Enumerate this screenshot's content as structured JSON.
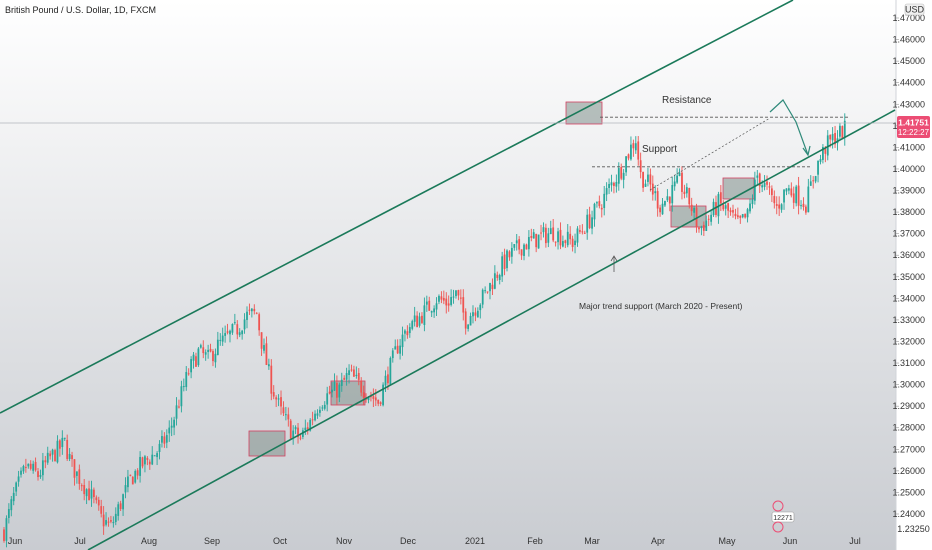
{
  "header": {
    "symbol_title": "British Pound / U.S. Dollar, 1D, FXCM"
  },
  "price_panel": {
    "currency": "USD",
    "price_label": "1.41751",
    "countdown_label": "12:22:27",
    "bottom_label": "1.23250"
  },
  "misc": {
    "event_badge": "12271"
  },
  "colors": {
    "up": "#26a69a",
    "down": "#ef5350",
    "channel": "#1b7a5a",
    "price_line": "#c94d6f",
    "box_fill": "#7f8f8b",
    "box_stroke": "#d2405f",
    "background_top": "#ffffff",
    "background_bottom": "#c9ccd1"
  },
  "chart_data": {
    "type": "candlestick",
    "instrument": "British Pound / U.S. Dollar",
    "timeframe": "1D",
    "source": "FXCM",
    "ylim": [
      1.2325,
      1.475
    ],
    "ylabel": "USD",
    "y_ticks": [
      "1.47000",
      "1.46000",
      "1.45000",
      "1.44000",
      "1.43000",
      "1.42000",
      "1.41000",
      "1.40000",
      "1.39000",
      "1.38000",
      "1.37000",
      "1.36000",
      "1.35000",
      "1.34000",
      "1.33000",
      "1.32000",
      "1.31000",
      "1.30000",
      "1.29000",
      "1.28000",
      "1.27000",
      "1.26000",
      "1.25000",
      "1.24000"
    ],
    "x_ticks": [
      "Jun",
      "Jul",
      "Aug",
      "Sep",
      "Oct",
      "Nov",
      "Dec",
      "2021",
      "Feb",
      "Mar",
      "Apr",
      "May",
      "Jun",
      "Jul"
    ],
    "last_price": 1.41751,
    "price_path": [
      [
        0,
        1.232
      ],
      [
        4,
        1.248
      ],
      [
        9,
        1.262
      ],
      [
        14,
        1.258
      ],
      [
        19,
        1.266
      ],
      [
        25,
        1.273
      ],
      [
        28,
        1.262
      ],
      [
        32,
        1.255
      ],
      [
        36,
        1.248
      ],
      [
        40,
        1.238
      ],
      [
        44,
        1.234
      ],
      [
        48,
        1.245
      ],
      [
        52,
        1.256
      ],
      [
        56,
        1.262
      ],
      [
        60,
        1.266
      ],
      [
        64,
        1.27
      ],
      [
        68,
        1.278
      ],
      [
        72,
        1.292
      ],
      [
        76,
        1.306
      ],
      [
        80,
        1.315
      ],
      [
        84,
        1.312
      ],
      [
        88,
        1.318
      ],
      [
        92,
        1.322
      ],
      [
        96,
        1.326
      ],
      [
        100,
        1.332
      ],
      [
        104,
        1.333
      ],
      [
        106,
        1.32
      ],
      [
        110,
        1.3
      ],
      [
        114,
        1.287
      ],
      [
        118,
        1.279
      ],
      [
        122,
        1.275
      ],
      [
        126,
        1.283
      ],
      [
        130,
        1.292
      ],
      [
        134,
        1.296
      ],
      [
        138,
        1.298
      ],
      [
        142,
        1.305
      ],
      [
        146,
        1.3
      ],
      [
        150,
        1.296
      ],
      [
        154,
        1.292
      ],
      [
        158,
        1.305
      ],
      [
        162,
        1.318
      ],
      [
        166,
        1.326
      ],
      [
        170,
        1.33
      ],
      [
        174,
        1.335
      ],
      [
        178,
        1.34
      ],
      [
        182,
        1.338
      ],
      [
        186,
        1.342
      ],
      [
        190,
        1.33
      ],
      [
        194,
        1.336
      ],
      [
        198,
        1.342
      ],
      [
        202,
        1.35
      ],
      [
        206,
        1.357
      ],
      [
        210,
        1.362
      ],
      [
        214,
        1.365
      ],
      [
        218,
        1.367
      ],
      [
        222,
        1.369
      ],
      [
        226,
        1.371
      ],
      [
        230,
        1.368
      ],
      [
        234,
        1.366
      ],
      [
        238,
        1.372
      ],
      [
        242,
        1.378
      ],
      [
        246,
        1.385
      ],
      [
        250,
        1.393
      ],
      [
        254,
        1.4
      ],
      [
        258,
        1.41
      ],
      [
        260,
        1.414
      ],
      [
        262,
        1.397
      ],
      [
        266,
        1.392
      ],
      [
        270,
        1.383
      ],
      [
        274,
        1.388
      ],
      [
        278,
        1.394
      ],
      [
        282,
        1.385
      ],
      [
        286,
        1.372
      ],
      [
        290,
        1.377
      ],
      [
        294,
        1.384
      ],
      [
        298,
        1.38
      ],
      [
        302,
        1.374
      ],
      [
        306,
        1.378
      ],
      [
        310,
        1.397
      ],
      [
        314,
        1.39
      ],
      [
        318,
        1.382
      ],
      [
        322,
        1.391
      ],
      [
        326,
        1.388
      ],
      [
        330,
        1.384
      ],
      [
        334,
        1.4
      ],
      [
        338,
        1.41
      ],
      [
        342,
        1.415
      ],
      [
        346,
        1.418
      ],
      [
        349,
        1.4175
      ]
    ],
    "resistance": 1.424,
    "support": 1.401,
    "annotations": [
      "Resistance",
      "Support",
      "Major trend support (March 2020 - Present)"
    ]
  }
}
